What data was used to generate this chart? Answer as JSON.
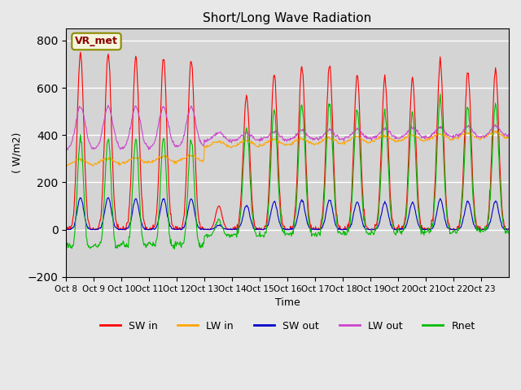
{
  "title": "Short/Long Wave Radiation",
  "xlabel": "Time",
  "ylabel": "( W/m2)",
  "ylim": [
    -200,
    850
  ],
  "background_color": "#e8e8e8",
  "plot_bg_color": "#d4d4d4",
  "grid_color": "#ffffff",
  "colors": {
    "SW_in": "#ff0000",
    "LW_in": "#ffa500",
    "SW_out": "#0000cc",
    "LW_out": "#cc44cc",
    "Rnet": "#00bb00"
  },
  "station_label": "VR_met",
  "x_tick_labels": [
    "Oct 8",
    "Oct 9",
    "Oct 10",
    "Oct 11",
    "Oct 12",
    "Oct 13",
    "Oct 14",
    "Oct 15",
    "Oct 16",
    "Oct 17",
    "Oct 18",
    "Oct 19",
    "Oct 20",
    "Oct 21",
    "Oct 22",
    "Oct 23"
  ],
  "n_days": 16,
  "dt": 0.5
}
